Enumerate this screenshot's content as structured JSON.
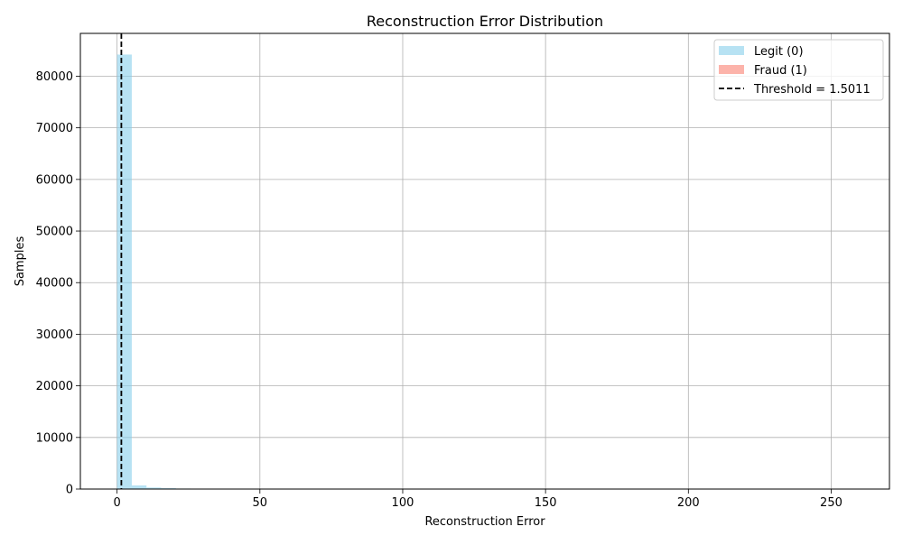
{
  "chart_data": {
    "type": "bar",
    "title": "Reconstruction Error Distribution",
    "xlabel": "Reconstruction Error",
    "ylabel": "Samples",
    "xlim": [
      -12.85,
      270.4
    ],
    "ylim": [
      0,
      88300
    ],
    "x_ticks": [
      0,
      50,
      100,
      150,
      200,
      250
    ],
    "y_ticks": [
      0,
      10000,
      20000,
      30000,
      40000,
      50000,
      60000,
      70000,
      80000
    ],
    "grid": true,
    "legend_position": "upper right",
    "series": [
      {
        "name": "Legit (0)",
        "color": "#87ceeb",
        "bins": [
          {
            "x0": 0.0,
            "x1": 5.15,
            "count": 84200
          },
          {
            "x0": 5.15,
            "x1": 10.3,
            "count": 700
          },
          {
            "x0": 10.3,
            "x1": 15.45,
            "count": 300
          },
          {
            "x0": 15.45,
            "x1": 20.6,
            "count": 180
          },
          {
            "x0": 20.6,
            "x1": 25.75,
            "count": 100
          }
        ]
      },
      {
        "name": "Fraud (1)",
        "color": "#fa8072",
        "bins": []
      }
    ],
    "threshold": {
      "label": "Threshold = 1.5011",
      "value": 1.5011,
      "color": "#000000",
      "style": "dashed"
    }
  }
}
